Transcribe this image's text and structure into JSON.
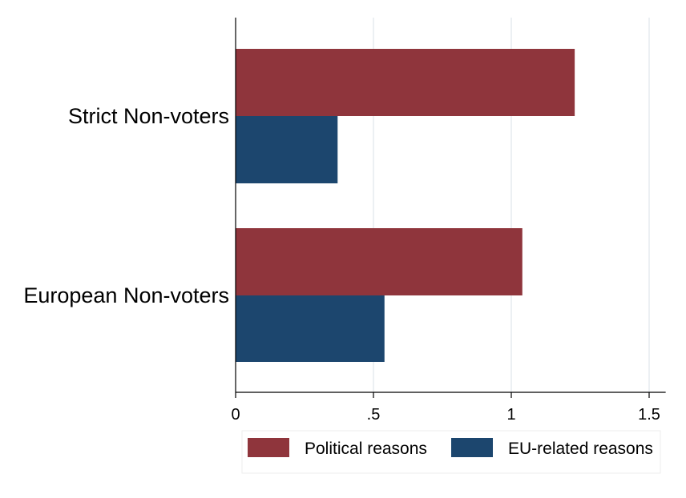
{
  "chart_data": {
    "type": "bar",
    "orientation": "horizontal",
    "categories": [
      "Strict Non-voters",
      "European Non-voters"
    ],
    "series": [
      {
        "name": "Political reasons",
        "values": [
          1.23,
          1.04
        ],
        "color": "#8f353c"
      },
      {
        "name": "EU-related reasons",
        "values": [
          0.37,
          0.54
        ],
        "color": "#1c466e"
      }
    ],
    "xlim": [
      0,
      1.56
    ],
    "xticks": [
      0,
      0.5,
      1,
      1.5
    ],
    "xtick_labels": [
      "0",
      ".5",
      "1",
      "1.5"
    ],
    "grid": true,
    "grid_color": "#e6ecef",
    "legend_position": "bottom",
    "title": "",
    "xlabel": "",
    "ylabel": ""
  }
}
